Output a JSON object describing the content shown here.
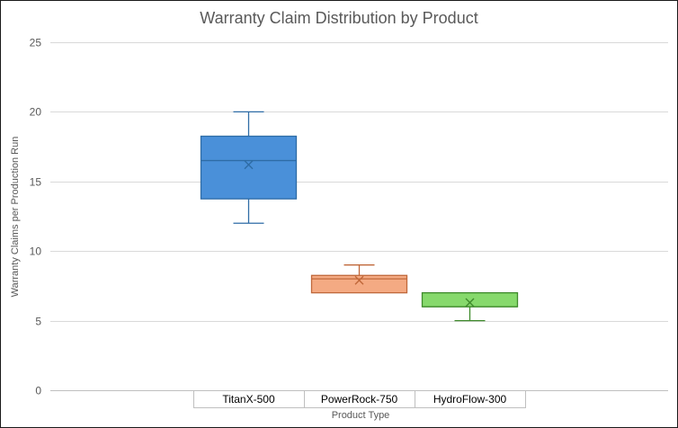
{
  "chart_data": {
    "type": "box",
    "title": "Warranty Claim Distribution by Product",
    "xlabel": "Product Type",
    "ylabel": "Warranty Claims per Production Run",
    "ylim": [
      0,
      25
    ],
    "yticks": [
      0,
      5,
      10,
      15,
      20,
      25
    ],
    "grid": true,
    "categories": [
      "TitanX-500",
      "PowerRock-750",
      "HydroFlow-300"
    ],
    "boxes": [
      {
        "category": "TitanX-500",
        "min": 12,
        "q1": 13.75,
        "median": 16.5,
        "q3": 18.25,
        "max": 20,
        "mean": 16.2,
        "fill": "#4a90d9",
        "stroke": "#2e6ca6"
      },
      {
        "category": "PowerRock-750",
        "min": 7,
        "q1": 7,
        "median": 8,
        "q3": 8.25,
        "max": 9,
        "mean": 7.9,
        "fill": "#f4aa83",
        "stroke": "#c0683a"
      },
      {
        "category": "HydroFlow-300",
        "min": 5,
        "q1": 6,
        "median": 6,
        "q3": 7,
        "max": 7,
        "mean": 6.3,
        "fill": "#86d96b",
        "stroke": "#3e8a2b"
      }
    ]
  }
}
